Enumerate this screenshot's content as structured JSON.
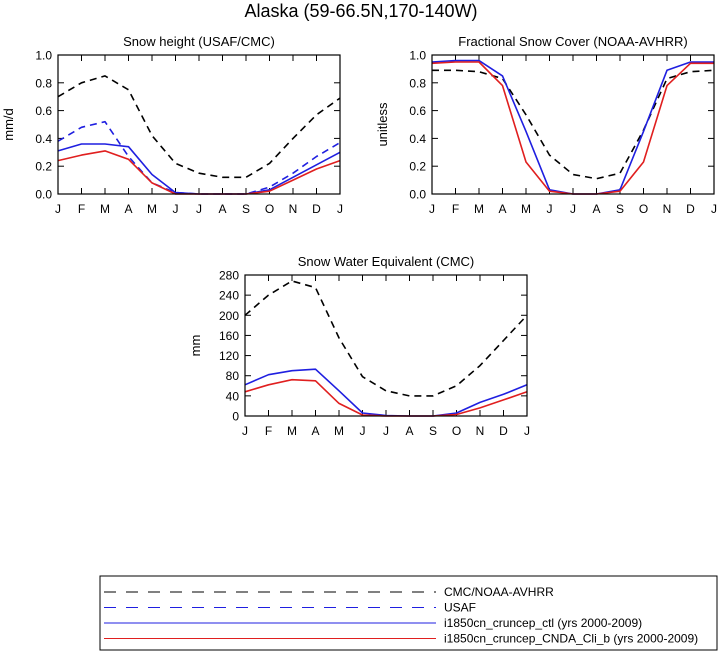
{
  "title": "Alaska (59-66.5N,170-140W)",
  "months": [
    "J",
    "F",
    "M",
    "A",
    "M",
    "J",
    "J",
    "A",
    "S",
    "O",
    "N",
    "D",
    "J"
  ],
  "colors": {
    "CMC/NOAA-AVHRR": "#000000",
    "USAF": "#1f1fe0",
    "i1850cn_cruncep_ctl (yrs 2000-2009)": "#1f1fe0",
    "i1850cn_cruncep_CNDA_Cli_b (yrs 2000-2009)": "#e01f1f"
  },
  "legend": [
    {
      "label": "CMC/NOAA-AVHRR",
      "color": "#000000",
      "dash": "dashed"
    },
    {
      "label": "USAF",
      "color": "#1f1fe0",
      "dash": "dashed"
    },
    {
      "label": "i1850cn_cruncep_ctl (yrs 2000-2009)",
      "color": "#1f1fe0",
      "dash": "solid"
    },
    {
      "label": "i1850cn_cruncep_CNDA_Cli_b (yrs 2000-2009)",
      "color": "#e01f1f",
      "dash": "solid"
    }
  ],
  "chart_data": [
    {
      "type": "line",
      "title": "Snow height (USAF/CMC)",
      "xlabel": "",
      "ylabel": "mm/d",
      "categories": [
        "J",
        "F",
        "M",
        "A",
        "M",
        "J",
        "J",
        "A",
        "S",
        "O",
        "N",
        "D",
        "J"
      ],
      "ylim": [
        0,
        1.0
      ],
      "yticks": [
        "0.0",
        "0.2",
        "0.4",
        "0.6",
        "0.8",
        "1.0"
      ],
      "series": [
        {
          "name": "CMC/NOAA-AVHRR",
          "dash": "dashed",
          "color": "#000000",
          "values": [
            0.7,
            0.8,
            0.85,
            0.75,
            0.42,
            0.22,
            0.15,
            0.12,
            0.12,
            0.22,
            0.4,
            0.57,
            0.69
          ]
        },
        {
          "name": "USAF",
          "dash": "dashed",
          "color": "#1f1fe0",
          "values": [
            0.38,
            0.48,
            0.52,
            0.27,
            0.08,
            0.01,
            0.0,
            0.0,
            0.0,
            0.05,
            0.15,
            0.27,
            0.37
          ]
        },
        {
          "name": "i1850cn_cruncep_ctl (yrs 2000-2009)",
          "dash": "solid",
          "color": "#1f1fe0",
          "values": [
            0.31,
            0.36,
            0.36,
            0.34,
            0.14,
            0.01,
            0.0,
            0.0,
            0.0,
            0.03,
            0.12,
            0.21,
            0.3
          ]
        },
        {
          "name": "i1850cn_cruncep_CNDA_Cli_b (yrs 2000-2009)",
          "dash": "solid",
          "color": "#e01f1f",
          "values": [
            0.24,
            0.28,
            0.31,
            0.25,
            0.08,
            0.0,
            0.0,
            0.0,
            0.0,
            0.02,
            0.1,
            0.18,
            0.24
          ]
        }
      ]
    },
    {
      "type": "line",
      "title": "Fractional Snow Cover (NOAA-AVHRR)",
      "xlabel": "",
      "ylabel": "unitless",
      "categories": [
        "J",
        "F",
        "M",
        "A",
        "M",
        "J",
        "J",
        "A",
        "S",
        "O",
        "N",
        "D",
        "J"
      ],
      "ylim": [
        0,
        1.0
      ],
      "yticks": [
        "0.0",
        "0.2",
        "0.4",
        "0.6",
        "0.8",
        "1.0"
      ],
      "series": [
        {
          "name": "CMC/NOAA-AVHRR",
          "dash": "dashed",
          "color": "#000000",
          "values": [
            0.89,
            0.89,
            0.88,
            0.83,
            0.57,
            0.28,
            0.14,
            0.11,
            0.15,
            0.46,
            0.83,
            0.88,
            0.89
          ]
        },
        {
          "name": "i1850cn_cruncep_ctl (yrs 2000-2009)",
          "dash": "solid",
          "color": "#1f1fe0",
          "values": [
            0.95,
            0.96,
            0.96,
            0.85,
            0.45,
            0.03,
            0.0,
            0.0,
            0.03,
            0.45,
            0.89,
            0.95,
            0.95
          ]
        },
        {
          "name": "i1850cn_cruncep_CNDA_Cli_b (yrs 2000-2009)",
          "dash": "solid",
          "color": "#e01f1f",
          "values": [
            0.94,
            0.95,
            0.95,
            0.78,
            0.23,
            0.02,
            0.0,
            0.0,
            0.02,
            0.23,
            0.78,
            0.94,
            0.94
          ]
        }
      ]
    },
    {
      "type": "line",
      "title": "Snow Water Equivalent (CMC)",
      "xlabel": "",
      "ylabel": "mm",
      "categories": [
        "J",
        "F",
        "M",
        "A",
        "M",
        "J",
        "J",
        "A",
        "S",
        "O",
        "N",
        "D",
        "J"
      ],
      "ylim": [
        0,
        280
      ],
      "yticks": [
        "0",
        "40",
        "80",
        "120",
        "160",
        "200",
        "240",
        "280"
      ],
      "series": [
        {
          "name": "CMC/NOAA-AVHRR",
          "dash": "dashed",
          "color": "#000000",
          "values": [
            200,
            240,
            268,
            255,
            155,
            78,
            50,
            40,
            40,
            60,
            100,
            150,
            200
          ]
        },
        {
          "name": "i1850cn_cruncep_ctl (yrs 2000-2009)",
          "dash": "solid",
          "color": "#1f1fe0",
          "values": [
            62,
            82,
            90,
            93,
            50,
            6,
            1,
            0,
            0,
            6,
            27,
            43,
            62
          ]
        },
        {
          "name": "i1850cn_cruncep_CNDA_Cli_b (yrs 2000-2009)",
          "dash": "solid",
          "color": "#e01f1f",
          "values": [
            48,
            62,
            72,
            70,
            25,
            2,
            0,
            0,
            0,
            3,
            16,
            32,
            48
          ]
        }
      ]
    }
  ]
}
